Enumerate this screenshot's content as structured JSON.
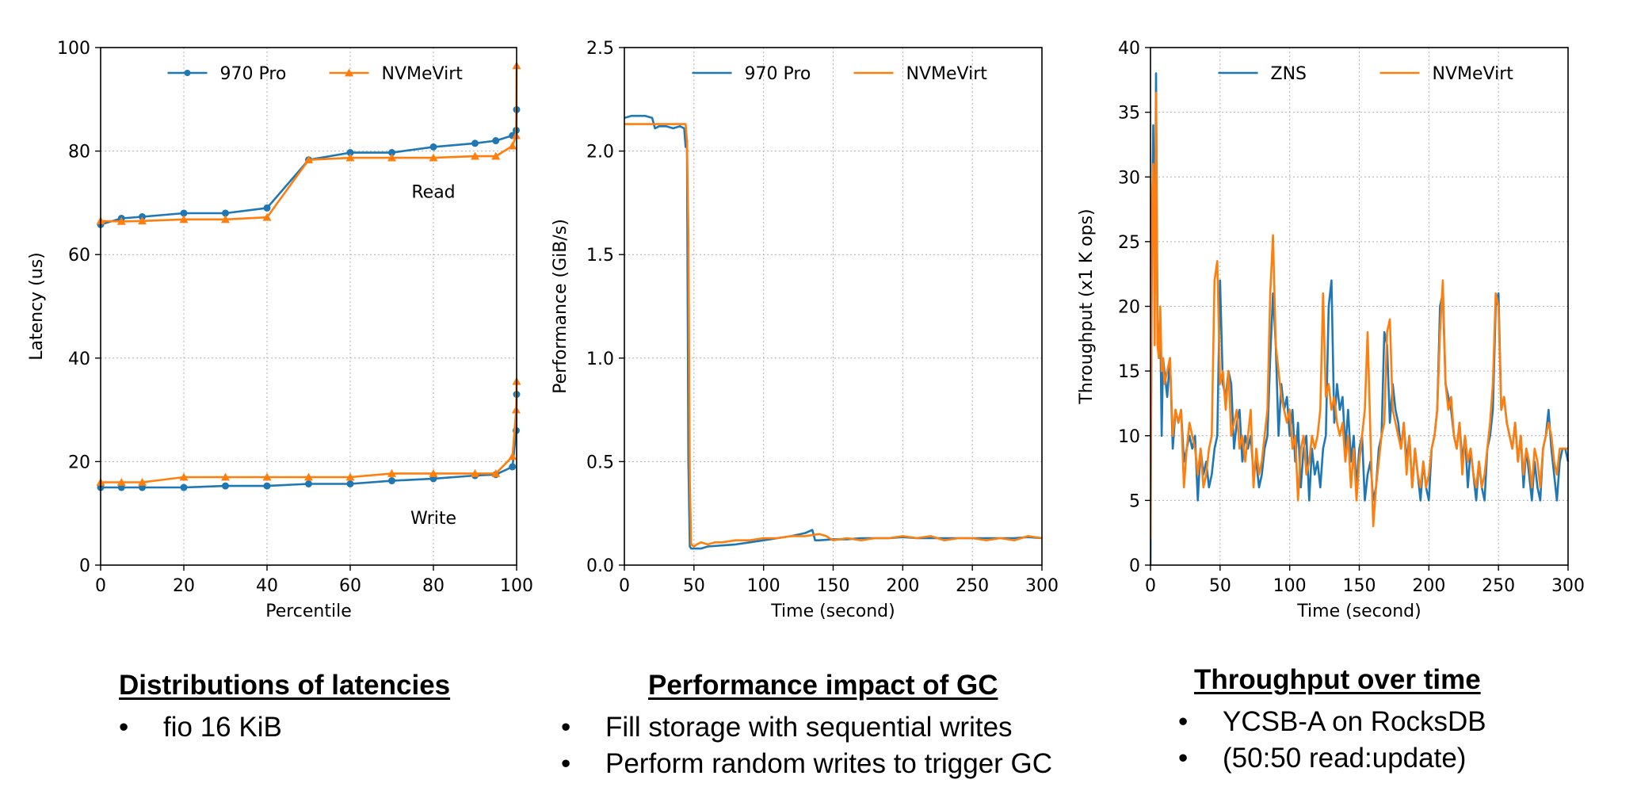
{
  "chart_data": [
    {
      "type": "line",
      "xlabel": "Percentile",
      "ylabel": "Latency (us)",
      "xlim": [
        0,
        100
      ],
      "ylim": [
        0,
        100
      ],
      "xticks": [
        0,
        20,
        40,
        60,
        80,
        100
      ],
      "yticks": [
        0,
        20,
        40,
        60,
        80,
        100
      ],
      "grid": true,
      "legend": "top-center",
      "annotations": [
        {
          "text": "Read",
          "x": 80,
          "y": 71
        },
        {
          "text": "Write",
          "x": 80,
          "y": 8
        }
      ],
      "series": [
        {
          "name": "970 Pro",
          "color": "#1f77b4",
          "marker": "circle",
          "x": [
            0,
            5,
            10,
            20,
            30,
            40,
            50,
            60,
            70,
            80,
            90,
            95,
            99,
            99.9,
            100
          ],
          "y": [
            65.8,
            67,
            67.3,
            68,
            68,
            69,
            78.3,
            79.7,
            79.7,
            80.8,
            81.5,
            82,
            83,
            84,
            88
          ]
        },
        {
          "name": "NVMeVirt",
          "color": "#ff7f0e",
          "marker": "triangle",
          "x": [
            0,
            5,
            10,
            20,
            30,
            40,
            50,
            60,
            70,
            80,
            90,
            95,
            99,
            99.9,
            100
          ],
          "y": [
            66.5,
            66.4,
            66.5,
            66.8,
            66.8,
            67.2,
            78.3,
            78.7,
            78.7,
            78.7,
            79,
            79,
            81,
            83,
            96.5
          ]
        },
        {
          "name": "970 Pro",
          "color": "#1f77b4",
          "marker": "circle",
          "x": [
            0,
            5,
            10,
            20,
            30,
            40,
            50,
            60,
            70,
            80,
            90,
            95,
            99,
            99.9,
            100
          ],
          "y": [
            15,
            15,
            15,
            15,
            15.3,
            15.3,
            15.7,
            15.7,
            16.3,
            16.7,
            17.3,
            17.5,
            19,
            26,
            33
          ]
        },
        {
          "name": "NVMeVirt",
          "color": "#ff7f0e",
          "marker": "triangle",
          "x": [
            0,
            5,
            10,
            20,
            30,
            40,
            50,
            60,
            70,
            80,
            90,
            95,
            99,
            99.9,
            100
          ],
          "y": [
            16,
            16,
            16,
            17,
            17,
            17,
            17,
            17,
            17.7,
            17.7,
            17.7,
            17.7,
            21,
            30,
            35.5
          ]
        }
      ]
    },
    {
      "type": "line",
      "xlabel": "Time (second)",
      "ylabel": "Performance (GiB/s)",
      "xlim": [
        0,
        300
      ],
      "ylim": [
        0,
        2.5
      ],
      "xticks": [
        0,
        50,
        100,
        150,
        200,
        250,
        300
      ],
      "yticks": [
        0.0,
        0.5,
        1.0,
        1.5,
        2.0,
        2.5
      ],
      "grid": true,
      "legend": "top-center",
      "series": [
        {
          "name": "970 Pro",
          "color": "#1f77b4",
          "x": [
            0,
            5,
            10,
            15,
            20,
            22,
            25,
            30,
            35,
            40,
            43,
            44,
            45,
            46,
            47,
            48,
            50,
            55,
            60,
            70,
            80,
            90,
            100,
            110,
            120,
            130,
            135,
            137,
            140,
            150,
            160,
            170,
            180,
            190,
            200,
            210,
            220,
            230,
            240,
            250,
            260,
            270,
            280,
            290,
            300
          ],
          "y": [
            2.16,
            2.17,
            2.17,
            2.17,
            2.16,
            2.11,
            2.12,
            2.12,
            2.11,
            2.12,
            2.11,
            2.02,
            2.05,
            0.5,
            0.09,
            0.08,
            0.08,
            0.08,
            0.09,
            0.095,
            0.1,
            0.11,
            0.12,
            0.13,
            0.14,
            0.155,
            0.17,
            0.12,
            0.12,
            0.125,
            0.125,
            0.13,
            0.13,
            0.13,
            0.135,
            0.13,
            0.13,
            0.13,
            0.13,
            0.13,
            0.13,
            0.13,
            0.13,
            0.135,
            0.13
          ]
        },
        {
          "name": "NVMeVirt",
          "color": "#ff7f0e",
          "x": [
            0,
            10,
            20,
            30,
            40,
            44,
            45,
            46,
            47,
            48,
            50,
            52,
            55,
            60,
            65,
            70,
            80,
            90,
            100,
            110,
            120,
            130,
            140,
            145,
            150,
            160,
            170,
            180,
            190,
            200,
            210,
            220,
            230,
            240,
            250,
            260,
            270,
            280,
            290,
            300
          ],
          "y": [
            2.13,
            2.13,
            2.13,
            2.13,
            2.13,
            2.13,
            2.05,
            1.6,
            0.4,
            0.1,
            0.09,
            0.1,
            0.11,
            0.1,
            0.11,
            0.11,
            0.12,
            0.12,
            0.13,
            0.13,
            0.14,
            0.14,
            0.15,
            0.14,
            0.12,
            0.13,
            0.12,
            0.13,
            0.13,
            0.14,
            0.13,
            0.14,
            0.12,
            0.13,
            0.13,
            0.12,
            0.13,
            0.12,
            0.14,
            0.13
          ]
        }
      ]
    },
    {
      "type": "line",
      "xlabel": "Time (second)",
      "ylabel": "Throughput (x1 K ops)",
      "xlim": [
        0,
        300
      ],
      "ylim": [
        0,
        40
      ],
      "xticks": [
        0,
        50,
        100,
        150,
        200,
        250,
        300
      ],
      "yticks": [
        0,
        5,
        10,
        15,
        20,
        25,
        30,
        35,
        40
      ],
      "grid": true,
      "legend": "top-center",
      "series": [
        {
          "name": "ZNS",
          "color": "#1f77b4",
          "x": [
            0,
            1,
            2,
            3,
            4,
            5,
            6,
            7,
            8,
            9,
            10,
            12,
            14,
            16,
            18,
            20,
            22,
            24,
            26,
            28,
            30,
            32,
            34,
            36,
            38,
            40,
            42,
            44,
            46,
            48,
            50,
            52,
            54,
            56,
            58,
            60,
            62,
            64,
            66,
            68,
            70,
            72,
            74,
            76,
            78,
            80,
            82,
            84,
            86,
            88,
            90,
            92,
            94,
            96,
            98,
            100,
            102,
            104,
            106,
            108,
            110,
            112,
            114,
            116,
            118,
            120,
            122,
            124,
            126,
            128,
            130,
            132,
            134,
            136,
            138,
            140,
            142,
            144,
            146,
            148,
            150,
            152,
            154,
            156,
            158,
            160,
            162,
            164,
            166,
            168,
            170,
            172,
            174,
            176,
            178,
            180,
            182,
            184,
            186,
            188,
            190,
            192,
            194,
            196,
            198,
            200,
            202,
            204,
            206,
            208,
            210,
            212,
            214,
            216,
            218,
            220,
            222,
            224,
            226,
            228,
            230,
            232,
            234,
            236,
            238,
            240,
            242,
            244,
            246,
            248,
            250,
            252,
            254,
            256,
            258,
            260,
            262,
            264,
            266,
            268,
            270,
            272,
            274,
            276,
            278,
            280,
            282,
            284,
            286,
            288,
            290,
            292,
            294,
            296,
            298,
            300
          ],
          "y": [
            0,
            25,
            34,
            21,
            38,
            19,
            16,
            19,
            10,
            16,
            15,
            13,
            16,
            9,
            12,
            11,
            12,
            8,
            9,
            10,
            9,
            10,
            5,
            9,
            7,
            8,
            6,
            7,
            9,
            10,
            22,
            14,
            13,
            15,
            14,
            9,
            11,
            12,
            8,
            10,
            9,
            10,
            7,
            8,
            6,
            7,
            9,
            10,
            16,
            21,
            17,
            10,
            14,
            12,
            13,
            10,
            12,
            8,
            11,
            6,
            9,
            10,
            5,
            9,
            7,
            8,
            6,
            9,
            10,
            20,
            22,
            11,
            14,
            12,
            13,
            9,
            12,
            8,
            10,
            6,
            9,
            10,
            5,
            7,
            8,
            5,
            6,
            9,
            10,
            18,
            17,
            11,
            14,
            12,
            11,
            9,
            11,
            8,
            10,
            6,
            9,
            7,
            5,
            8,
            6,
            5,
            9,
            10,
            12,
            20,
            21,
            14,
            13,
            12,
            10,
            9,
            11,
            8,
            10,
            6,
            9,
            7,
            5,
            8,
            6,
            5,
            9,
            10,
            12,
            20,
            21,
            12,
            13,
            11,
            10,
            9,
            11,
            8,
            10,
            6,
            9,
            7,
            5,
            8,
            6,
            5,
            9,
            10,
            12,
            9,
            7,
            5,
            8,
            9,
            9,
            8
          ]
        },
        {
          "name": "NVMeVirt",
          "color": "#ff7f0e",
          "x": [
            0,
            1,
            2,
            3,
            4,
            5,
            6,
            7,
            8,
            9,
            10,
            12,
            14,
            16,
            18,
            20,
            22,
            24,
            26,
            28,
            30,
            32,
            34,
            36,
            38,
            40,
            42,
            44,
            46,
            48,
            50,
            52,
            54,
            56,
            58,
            60,
            62,
            64,
            66,
            68,
            70,
            72,
            74,
            76,
            78,
            80,
            82,
            84,
            86,
            88,
            90,
            92,
            94,
            96,
            98,
            100,
            102,
            104,
            106,
            108,
            110,
            112,
            114,
            116,
            118,
            120,
            122,
            124,
            126,
            128,
            130,
            132,
            134,
            136,
            138,
            140,
            142,
            144,
            146,
            148,
            150,
            152,
            154,
            156,
            158,
            160,
            162,
            164,
            166,
            168,
            170,
            172,
            174,
            176,
            178,
            180,
            182,
            184,
            186,
            188,
            190,
            192,
            194,
            196,
            198,
            200,
            202,
            204,
            206,
            208,
            210,
            212,
            214,
            216,
            218,
            220,
            222,
            224,
            226,
            228,
            230,
            232,
            234,
            236,
            238,
            240,
            242,
            244,
            246,
            248,
            250,
            252,
            254,
            256,
            258,
            260,
            262,
            264,
            266,
            268,
            270,
            272,
            274,
            276,
            278,
            280,
            282,
            284,
            286,
            288,
            290,
            292,
            294,
            296,
            298,
            300
          ],
          "y": [
            2,
            28,
            31,
            17,
            36.5,
            17,
            16,
            20,
            15,
            16,
            14,
            15,
            16,
            10,
            12,
            11,
            12,
            6,
            9,
            11,
            10,
            9,
            7,
            9,
            6,
            7,
            9,
            10,
            22,
            23.5,
            14,
            15,
            12,
            15,
            10,
            11,
            12,
            9,
            10,
            8,
            10,
            12,
            6,
            9,
            7,
            8,
            10,
            12,
            21,
            25.5,
            17,
            15,
            13,
            12,
            11,
            12,
            9,
            10,
            5,
            9,
            10,
            7,
            8,
            10,
            9,
            10,
            12,
            21,
            13,
            14,
            12,
            13,
            11,
            10,
            11,
            8,
            10,
            6,
            9,
            5,
            8,
            10,
            12,
            18,
            10,
            3,
            6,
            8,
            10,
            11,
            18,
            19,
            12,
            11,
            10,
            9,
            11,
            7,
            10,
            6,
            9,
            7,
            6,
            8,
            6,
            7,
            9,
            10,
            12,
            18,
            22,
            14,
            12,
            13,
            10,
            9,
            11,
            7,
            10,
            8,
            9,
            7,
            6,
            8,
            6,
            7,
            9,
            11,
            14,
            21,
            20,
            12,
            13,
            11,
            10,
            9,
            11,
            8,
            10,
            7,
            9,
            8,
            6,
            9,
            8,
            6,
            9,
            10,
            11,
            10,
            8,
            7,
            9,
            9,
            9,
            9
          ]
        }
      ]
    }
  ],
  "captions": [
    {
      "title": "Distributions of latencies",
      "bullets": [
        "fio 16 KiB"
      ]
    },
    {
      "title": "Performance impact of GC",
      "bullets": [
        "Fill storage with sequential writes",
        "Perform random writes to trigger GC"
      ]
    },
    {
      "title": "Throughput over time",
      "bullets": [
        "YCSB-A on RocksDB",
        "(50:50 read:update)"
      ]
    }
  ]
}
